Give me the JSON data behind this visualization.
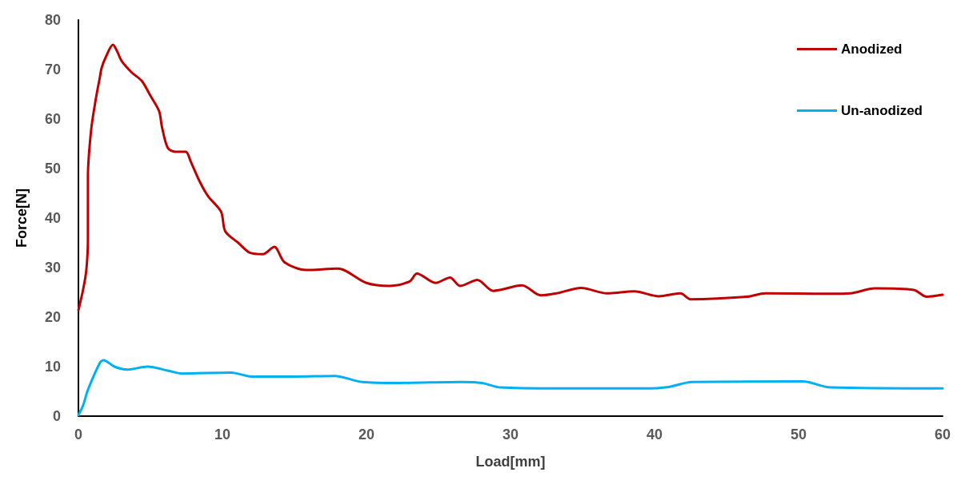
{
  "chart_data": {
    "type": "line",
    "xlabel": "Load[mm]",
    "ylabel": "Force[N]",
    "xlim": [
      0,
      60
    ],
    "xticks": [
      0,
      10,
      20,
      30,
      40,
      50,
      60
    ],
    "ylim": [
      0,
      80
    ],
    "yticks": [
      0,
      10,
      20,
      30,
      40,
      50,
      60,
      70,
      80
    ],
    "grid": false,
    "legend": "top right",
    "marker": "none",
    "line_style": "solid",
    "series": [
      {
        "name": "Anodized",
        "color": "#c00000",
        "x": [
          0,
          0.33,
          0.55,
          0.66,
          0.66,
          0.88,
          1.2,
          1.5,
          1.6,
          1.9,
          2.4,
          2.7,
          3.0,
          3.7,
          4.4,
          5.0,
          5.6,
          5.8,
          6.2,
          6.7,
          7.45,
          7.8,
          8.4,
          9.0,
          9.9,
          10.2,
          11.1,
          11.9,
          12.8,
          13.6,
          14.3,
          15.8,
          18,
          20,
          21.6,
          23,
          23.5,
          24.8,
          25.8,
          26.5,
          27.7,
          28.8,
          30.8,
          32.1,
          33.2,
          34.9,
          36.7,
          38.6,
          40.3,
          41.8,
          42.5,
          46.4,
          47.7,
          52.2,
          53.6,
          55.3,
          58,
          58.9,
          60
        ],
        "values": [
          21.4,
          25.6,
          29.5,
          35.8,
          48.3,
          57.7,
          63.9,
          68.6,
          70.2,
          72.5,
          75,
          73.6,
          71.7,
          69.4,
          67.7,
          64.7,
          61.6,
          58.4,
          54.2,
          53.4,
          53.4,
          51.4,
          47.5,
          44.4,
          41.3,
          37.3,
          35,
          33,
          32.7,
          34.2,
          31.1,
          29.5,
          29.8,
          26.9,
          26.3,
          27.2,
          28.8,
          26.9,
          28,
          26.3,
          27.5,
          25.3,
          26.4,
          24.4,
          24.8,
          25.9,
          24.8,
          25.2,
          24.2,
          24.8,
          23.6,
          24.1,
          24.8,
          24.7,
          24.8,
          25.8,
          25.5,
          24.1,
          24.5
        ]
      },
      {
        "name": "Un-anodized",
        "color": "#00b0f0",
        "x": [
          0,
          0.33,
          0.66,
          1.5,
          1.75,
          2.5,
          3.4,
          4.8,
          6.2,
          7.2,
          10.6,
          12,
          15,
          17.8,
          19.7,
          22.2,
          26.6,
          28,
          29.3,
          33.2,
          39.3,
          41,
          42.6,
          50.3,
          52.2,
          60
        ],
        "values": [
          0.2,
          2.2,
          5.3,
          10.8,
          11.3,
          10,
          9.4,
          10,
          9.2,
          8.6,
          8.8,
          8,
          8,
          8.1,
          6.9,
          6.7,
          6.9,
          6.7,
          5.8,
          5.6,
          5.6,
          5.9,
          6.9,
          7.0,
          5.8,
          5.6
        ]
      }
    ]
  }
}
